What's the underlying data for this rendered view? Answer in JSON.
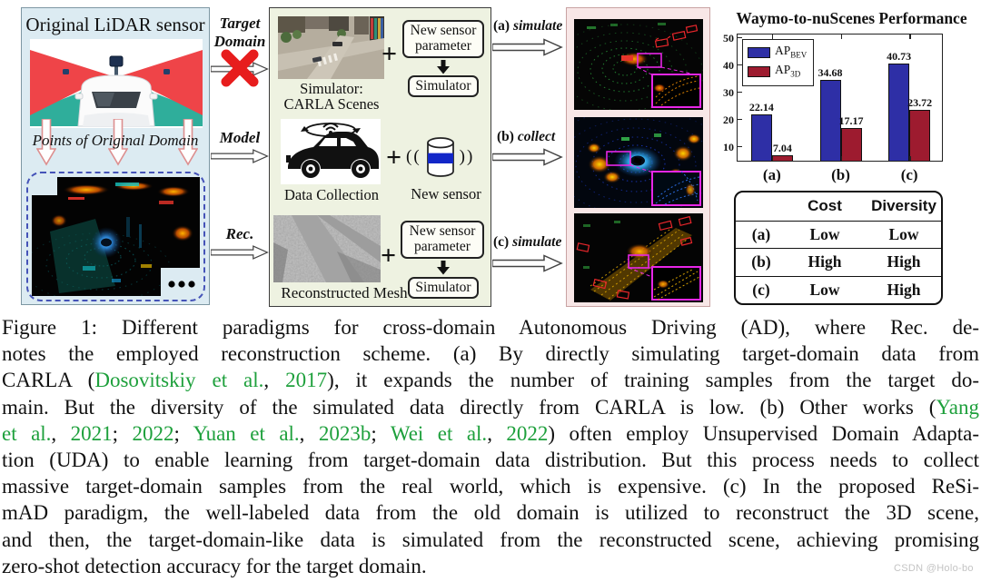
{
  "colors": {
    "blue_bar": "#2e2fa6",
    "red_bar": "#9d1b2f",
    "citation_green": "#1ea03c",
    "left_panel_bg": "#dcebf2",
    "mid_panel_bg": "#eef2e1",
    "pink_panel_bg": "#f8e7e7"
  },
  "left_panel": {
    "title": "Original LiDAR sensor",
    "points_label": "Points of Original Domain"
  },
  "flow": {
    "target_domain": "Target Domain",
    "model": "Model",
    "rec": "Rec.",
    "out": [
      {
        "tag": "(a)",
        "verb": "simulate"
      },
      {
        "tag": "(b)",
        "verb": "collect"
      },
      {
        "tag": "(c)",
        "verb": "simulate"
      }
    ]
  },
  "middle_panel": {
    "plus": "+",
    "carla_caption_line1": "Simulator:",
    "carla_caption_line2": "CARLA Scenes",
    "new_sensor_param_box": "New sensor parameter",
    "simulator_box": "Simulator",
    "data_collection_caption": "Data Collection",
    "sensor_paren_left": "((",
    "sensor_paren_right": "))",
    "new_sensor_label": "New sensor",
    "mesh_caption": "Reconstructed Mesh"
  },
  "chart_data": {
    "type": "bar",
    "title": "Waymo-to-nuScenes Performance",
    "categories": [
      "(a)",
      "(b)",
      "(c)"
    ],
    "series": [
      {
        "name": "AP",
        "sub": "BEV",
        "color": "#2e2fa6",
        "values": [
          22.14,
          34.68,
          40.73
        ]
      },
      {
        "name": "AP",
        "sub": "3D",
        "color": "#9d1b2f",
        "values": [
          7.04,
          17.17,
          23.72
        ]
      }
    ],
    "yticks": [
      10,
      20,
      30,
      40,
      50
    ],
    "ylim": [
      5,
      52
    ],
    "xlabel": "",
    "ylabel": "",
    "grid": false,
    "legend_position": "top-left"
  },
  "table": {
    "headers": [
      "",
      "Cost",
      "Diversity"
    ],
    "rows": [
      [
        "(a)",
        "Low",
        "Low"
      ],
      [
        "(b)",
        "High",
        "High"
      ],
      [
        "(c)",
        "Low",
        "High"
      ]
    ]
  },
  "caption": {
    "lines": [
      [
        {
          "t": "Figure 1:  Different paradigms for cross-domain Autonomous Driving (AD), where Rec.  de-"
        }
      ],
      [
        {
          "t": "notes the employed reconstruction scheme.  (a) By directly simulating target-domain data from"
        }
      ],
      [
        {
          "t": "CARLA ("
        },
        {
          "t": "Dosovitskiy et al.",
          "g": true
        },
        {
          "t": ", "
        },
        {
          "t": "2017",
          "g": true
        },
        {
          "t": "), it expands the number of training samples from the target do-"
        }
      ],
      [
        {
          "t": "main. But the diversity of the simulated data directly from CARLA is low.  (b) Other works ("
        },
        {
          "t": "Yang",
          "g": true
        }
      ],
      [
        {
          "t": "et al.",
          "g": true
        },
        {
          "t": ", "
        },
        {
          "t": "2021",
          "g": true
        },
        {
          "t": "; "
        },
        {
          "t": "2022",
          "g": true
        },
        {
          "t": "; "
        },
        {
          "t": "Yuan et al.",
          "g": true
        },
        {
          "t": ", "
        },
        {
          "t": "2023b",
          "g": true
        },
        {
          "t": "; "
        },
        {
          "t": "Wei et al.",
          "g": true
        },
        {
          "t": ", "
        },
        {
          "t": "2022",
          "g": true
        },
        {
          "t": ") often employ Unsupervised Domain Adapta-"
        }
      ],
      [
        {
          "t": "tion (UDA) to enable learning from target-domain data distribution. But this process needs to collect"
        }
      ],
      [
        {
          "t": "massive target-domain samples from the real world, which is expensive.  (c) In the proposed ReSi-"
        }
      ],
      [
        {
          "t": "mAD paradigm, the well-labeled data from the old domain is utilized to reconstruct the 3D scene,"
        }
      ],
      [
        {
          "t": "and then, the target-domain-like data is simulated from the reconstructed scene, achieving promising"
        }
      ],
      [
        {
          "t": "zero-shot detection accuracy for the target domain."
        }
      ]
    ]
  },
  "watermark": "CSDN @Holo-bo"
}
